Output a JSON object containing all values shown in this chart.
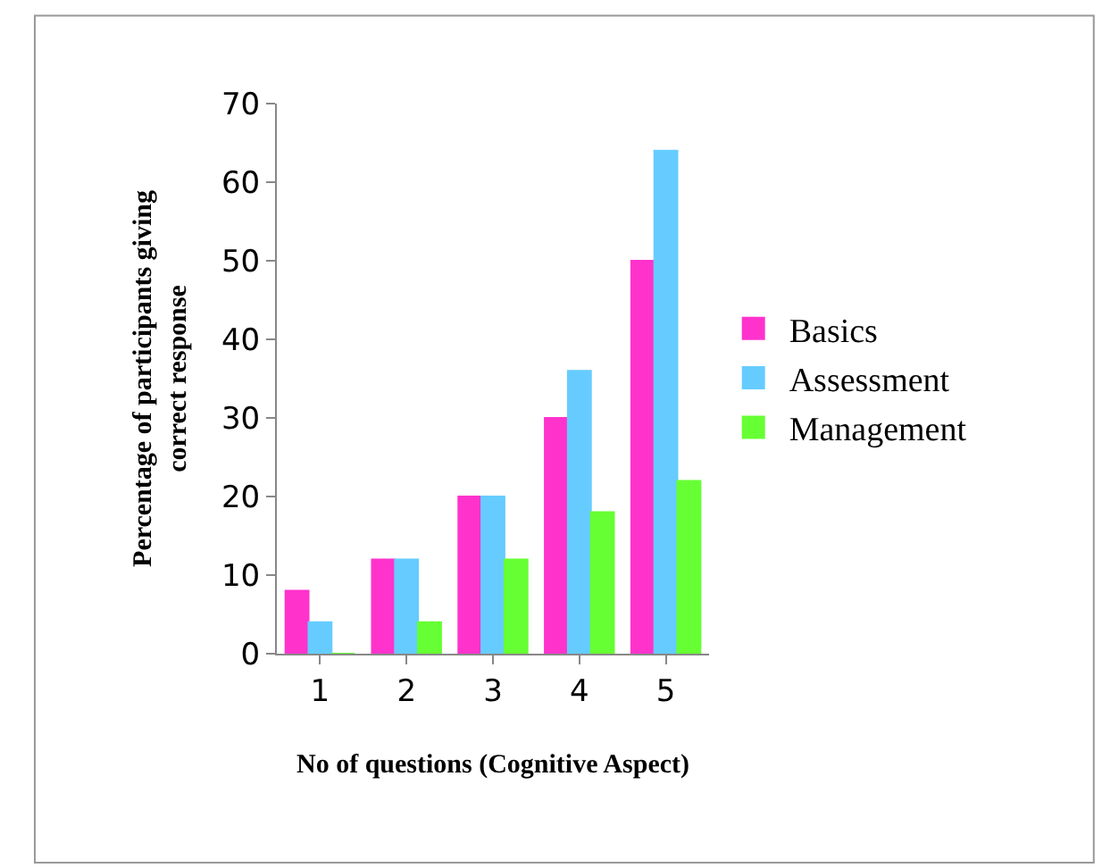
{
  "chart_data": {
    "type": "bar",
    "xlabel": "No of questions (Cognitive Aspect)",
    "ylabel": "Percentage of participants giving correct response",
    "categories": [
      "1",
      "2",
      "3",
      "4",
      "5"
    ],
    "series": [
      {
        "name": "Basics",
        "color": "#ff33cc",
        "values": [
          8,
          12,
          20,
          30,
          50
        ]
      },
      {
        "name": "Assessment",
        "color": "#66ccff",
        "values": [
          4,
          12,
          20,
          36,
          64
        ]
      },
      {
        "name": "Management",
        "color": "#66ff33",
        "values": [
          0,
          4,
          12,
          18,
          22
        ]
      }
    ],
    "ylim": [
      0,
      70
    ],
    "yticks": [
      0,
      10,
      20,
      30,
      40,
      50,
      60,
      70
    ],
    "legend": "right"
  }
}
